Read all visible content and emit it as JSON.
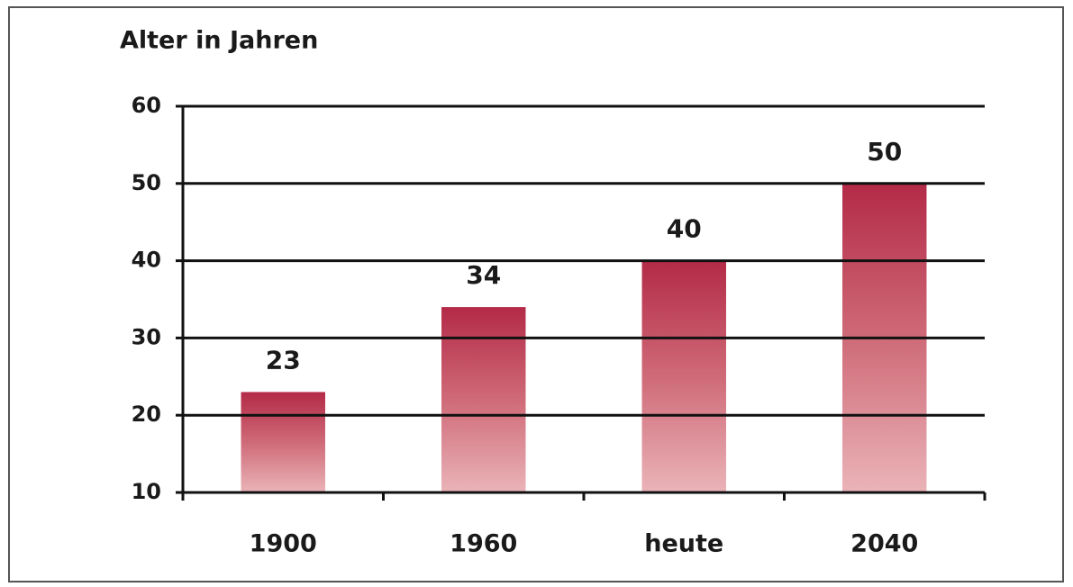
{
  "chart_data": {
    "type": "bar",
    "title": "Alter in Jahren",
    "categories": [
      "1900",
      "1960",
      "heute",
      "2040"
    ],
    "values": [
      23,
      34,
      40,
      50
    ],
    "color": "#b32a47",
    "ylim": [
      10,
      60
    ],
    "yticks": [
      10,
      20,
      30,
      40,
      50,
      60
    ],
    "grid": true
  }
}
